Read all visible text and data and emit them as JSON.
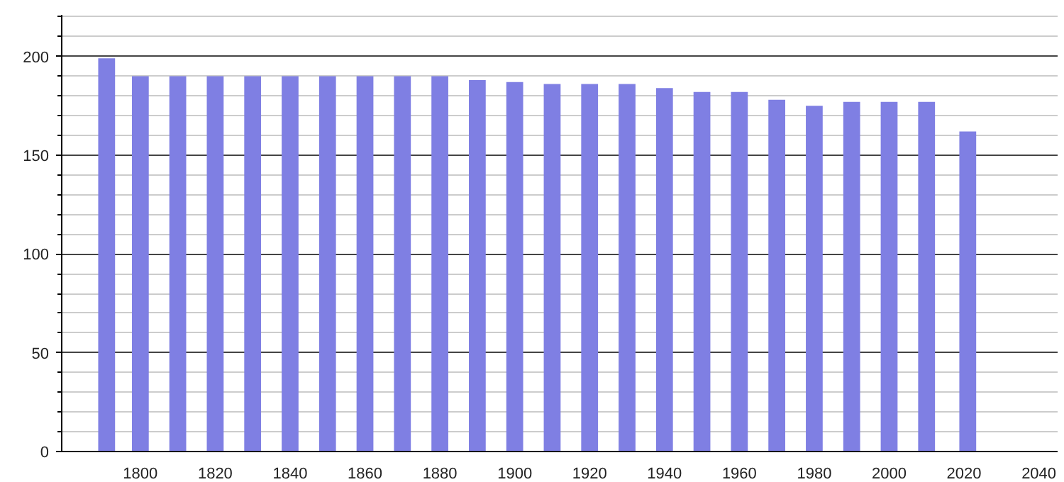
{
  "chart_data": {
    "type": "bar",
    "x": [
      1791,
      1800,
      1810,
      1820,
      1830,
      1840,
      1850,
      1860,
      1870,
      1880,
      1890,
      1900,
      1910,
      1920,
      1930,
      1940,
      1950,
      1960,
      1970,
      1980,
      1990,
      2000,
      2010,
      2021
    ],
    "values": [
      199,
      190,
      190,
      190,
      190,
      190,
      190,
      190,
      190,
      190,
      188,
      187,
      186,
      186,
      186,
      184,
      182,
      182,
      178,
      175,
      177,
      177,
      177,
      162
    ],
    "color": "#7f7fe3",
    "xlim": [
      1779,
      2045
    ],
    "xticks": [
      1800,
      1820,
      1840,
      1860,
      1880,
      1900,
      1920,
      1940,
      1960,
      1980,
      2000,
      2020,
      2040
    ],
    "ylim": [
      0,
      221
    ],
    "yticks": [
      0,
      50,
      100,
      150,
      200
    ],
    "grid": "y"
  }
}
